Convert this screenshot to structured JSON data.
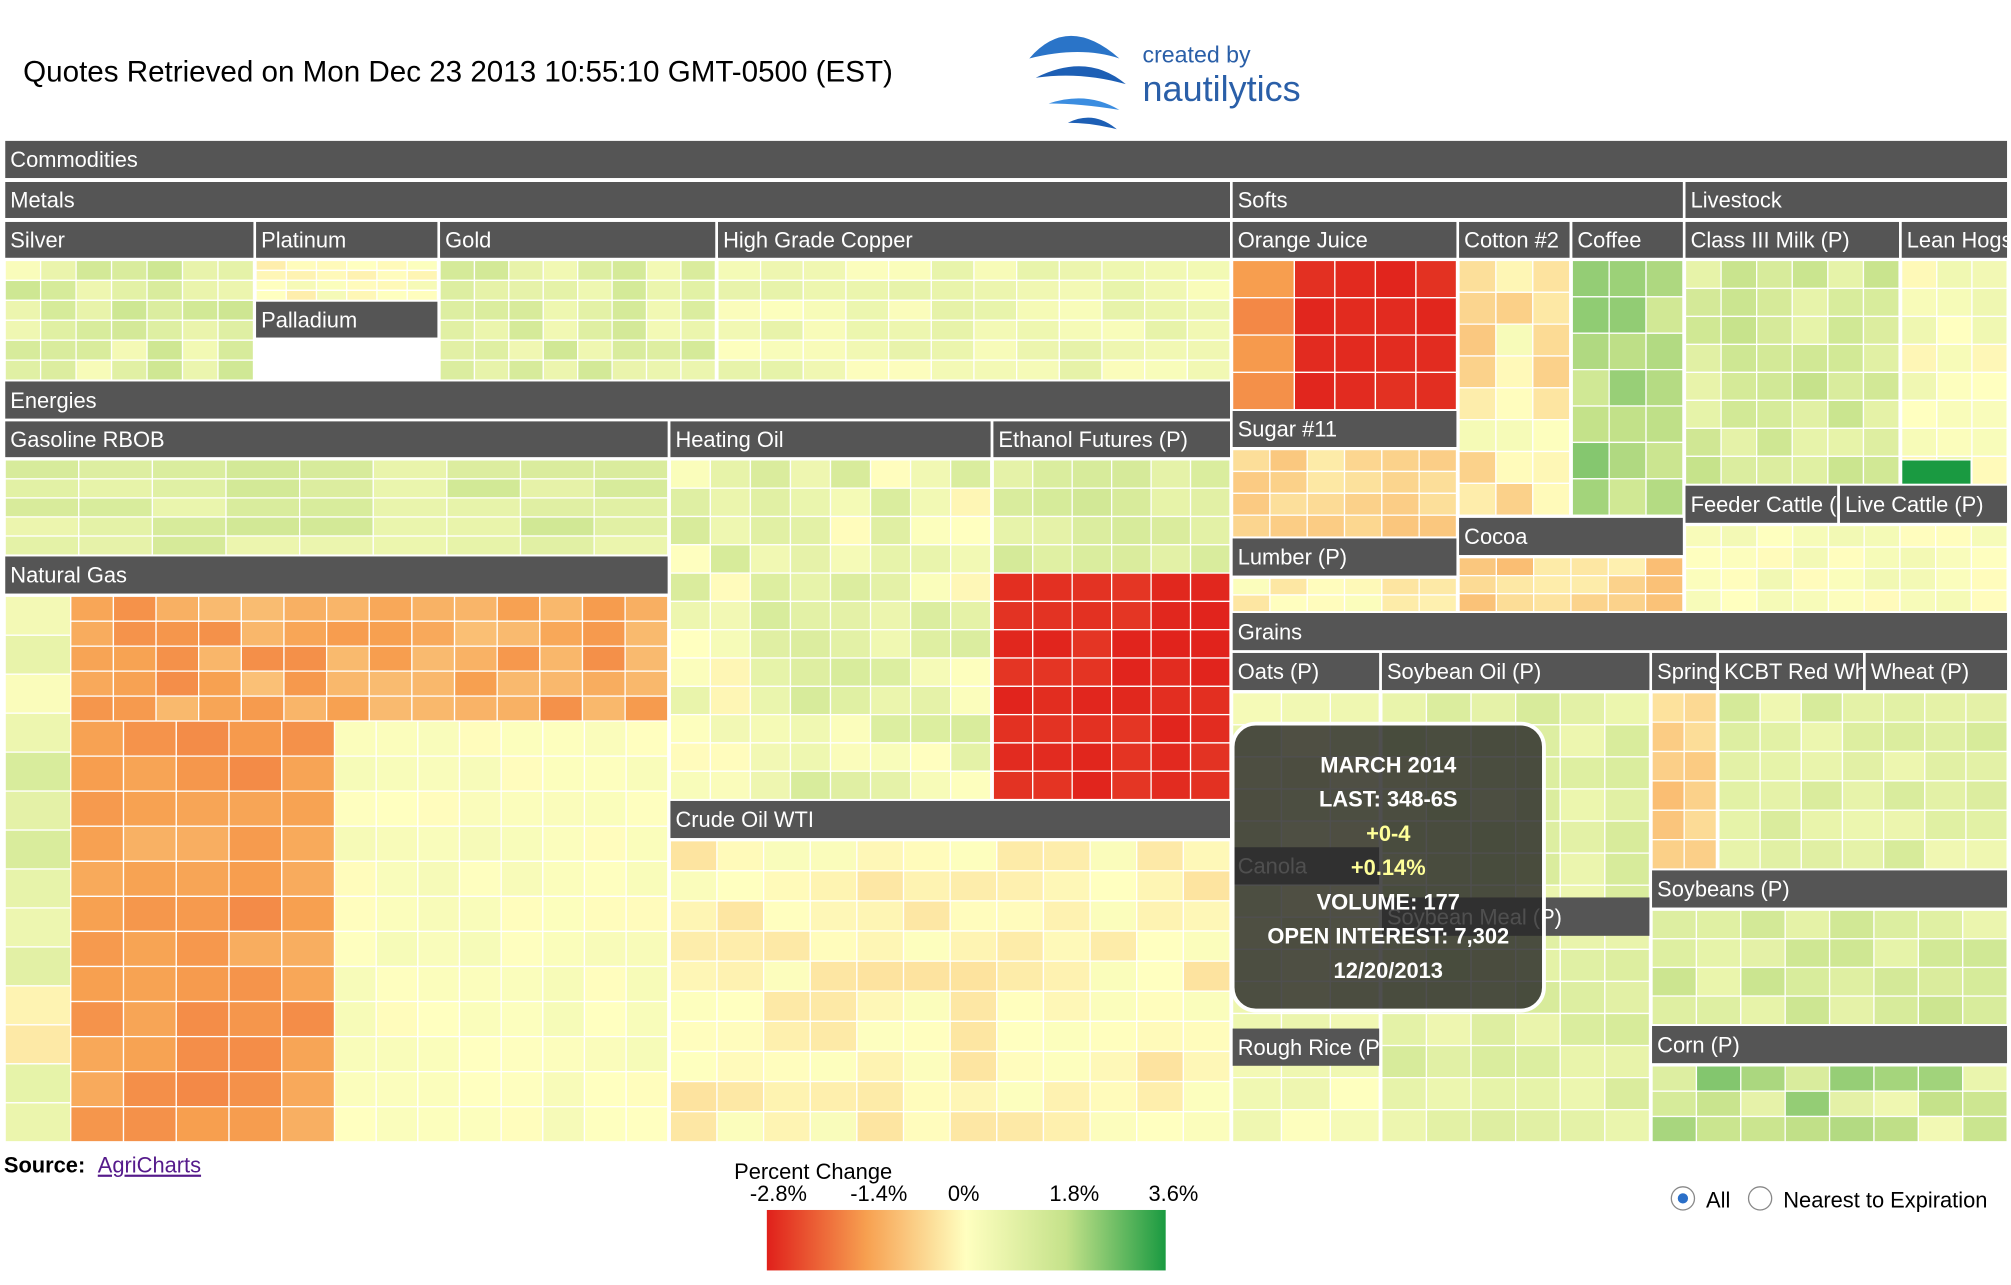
{
  "header": {
    "title": "Quotes Retrieved on Mon Dec 23 2013 10:55:10 GMT-0500 (EST)",
    "logo": {
      "line1": "created by",
      "line2": "nautilytics"
    }
  },
  "treemap": {
    "labels": [
      "Commodities",
      "Metals",
      "Softs",
      "Livestock",
      "Silver",
      "Platinum",
      "Gold",
      "High Grade Copper",
      "Orange Juice",
      "Cotton #2",
      "Coffee",
      "Class III Milk (P)",
      "Lean Hogs",
      "Palladium",
      "Energies",
      "Gasoline RBOB",
      "Heating Oil",
      "Ethanol Futures (P)",
      "Natural Gas",
      "Crude Oil WTI",
      "Sugar #11",
      "Lumber (P)",
      "Cocoa",
      "Feeder Cattle (",
      "Live Cattle (P)",
      "Grains",
      "Oats (P)",
      "Soybean Oil (P)",
      "Spring",
      "KCBT Red Wh",
      "Wheat (P)",
      "Canola",
      "Soybean Meal (P)",
      "Soybeans (P)",
      "Rough Rice (P)",
      "Corn (P)"
    ]
  },
  "tooltip": {
    "lines": [
      "MARCH 2014",
      "LAST: 348-6S",
      "+0-4",
      "+0.14%",
      "VOLUME: 177",
      "OPEN INTEREST: 7,302",
      "12/20/2013"
    ]
  },
  "legend": {
    "title": "Percent Change",
    "ticks": [
      "-2.8%",
      "-1.4%",
      "0%",
      "1.8%",
      "3.6%"
    ]
  },
  "source": {
    "label": "Source:",
    "link": "AgriCharts"
  },
  "filter": {
    "options": [
      "All",
      "Nearest to Expiration"
    ]
  }
}
